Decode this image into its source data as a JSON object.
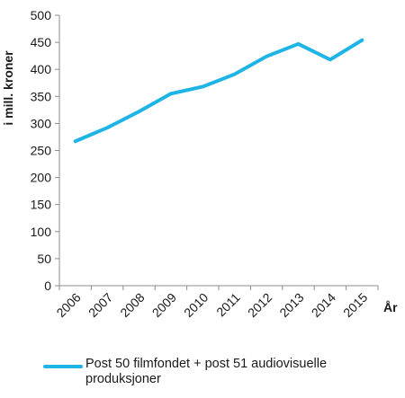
{
  "chart_data": {
    "type": "line",
    "title": "",
    "ylabel": "i mill. kroner",
    "xlabel": "År",
    "ylim": [
      0,
      500
    ],
    "yticks": [
      0,
      50,
      100,
      150,
      200,
      250,
      300,
      350,
      400,
      450,
      500
    ],
    "categories": [
      "2006",
      "2007",
      "2008",
      "2009",
      "2010",
      "2011",
      "2012",
      "2013",
      "2014",
      "2015"
    ],
    "series": [
      {
        "name": "Post 50 filmfondet + post 51 audiovisuelle produksjoner",
        "values": [
          267,
          292,
          322,
          355,
          368,
          391,
          424,
          447,
          418,
          454
        ],
        "color": "#1fb4e6"
      }
    ],
    "grid": false,
    "legend_position": "bottom"
  }
}
